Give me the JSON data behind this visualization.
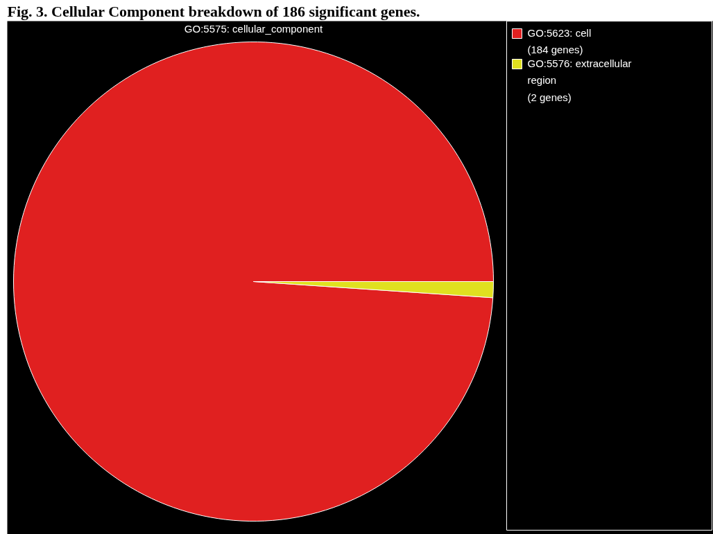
{
  "chart_data": {
    "type": "pie",
    "title": "Fig. 3. Cellular Component breakdown of 186 significant genes.",
    "subtitle": "GO:5575: cellular_component",
    "categories": [
      "GO:5623: cell\n(184 genes)",
      "GO:5576: extracellular\nregion\n(2 genes)"
    ],
    "values": [
      184,
      2
    ],
    "colors": [
      "#e02020",
      "#e0e020"
    ],
    "legend": "right"
  }
}
